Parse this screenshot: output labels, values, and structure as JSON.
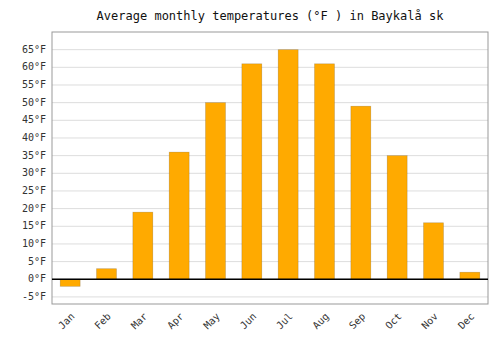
{
  "chart_data": {
    "type": "bar",
    "title": "Average monthly temperatures (°F ) in Baykalå sk",
    "categories": [
      "Jan",
      "Feb",
      "Mar",
      "Apr",
      "May",
      "Jun",
      "Jul",
      "Aug",
      "Sep",
      "Oct",
      "Nov",
      "Dec"
    ],
    "values": [
      -2,
      3,
      19,
      36,
      50,
      61,
      65,
      61,
      49,
      35,
      16,
      2
    ],
    "color": "#FFAA00",
    "ylim": [
      -7,
      70
    ],
    "yticks": [
      {
        "value": -5,
        "label": "-5°F"
      },
      {
        "value": 0,
        "label": "0°F"
      },
      {
        "value": 5,
        "label": "5°F"
      },
      {
        "value": 10,
        "label": "10°F"
      },
      {
        "value": 15,
        "label": "15°F"
      },
      {
        "value": 20,
        "label": "20°F"
      },
      {
        "value": 25,
        "label": "25°F"
      },
      {
        "value": 30,
        "label": "30°F"
      },
      {
        "value": 35,
        "label": "35°F"
      },
      {
        "value": 40,
        "label": "40°F"
      },
      {
        "value": 45,
        "label": "45°F"
      },
      {
        "value": 50,
        "label": "50°F"
      },
      {
        "value": 55,
        "label": "55°F"
      },
      {
        "value": 60,
        "label": "60°F"
      },
      {
        "value": 65,
        "label": "65°F"
      }
    ],
    "grid": true
  }
}
